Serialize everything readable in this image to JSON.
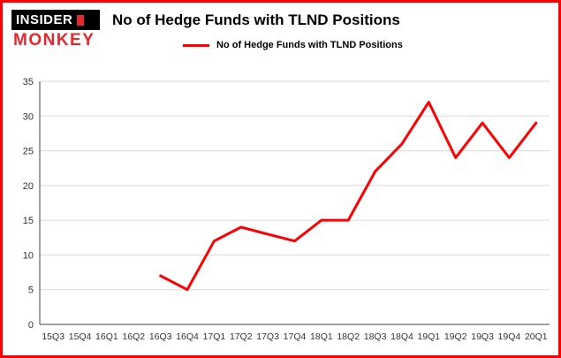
{
  "brand": {
    "line1": "INSIDER",
    "line2": "MONKEY"
  },
  "colors": {
    "accent_red": "#fe0000",
    "border_red": "#fb0104",
    "grid": "#d8d8d8",
    "axis": "#444444",
    "tick_text": "#333333",
    "logo_black": "#000000",
    "logo_red": "#e8262d"
  },
  "chart_data": {
    "type": "line",
    "title": "No of Hedge Funds with TLND Positions",
    "xlabel": "",
    "ylabel": "",
    "categories": [
      "15Q3",
      "15Q4",
      "16Q1",
      "16Q2",
      "16Q3",
      "16Q4",
      "17Q1",
      "17Q2",
      "17Q3",
      "17Q4",
      "18Q1",
      "18Q2",
      "18Q3",
      "18Q4",
      "19Q1",
      "19Q2",
      "19Q3",
      "19Q4",
      "20Q1"
    ],
    "series": [
      {
        "name": "No of Hedge Funds with TLND Positions",
        "color": "#fe0000",
        "values": [
          null,
          null,
          null,
          null,
          7,
          5,
          12,
          14,
          13,
          12,
          15,
          15,
          22,
          26,
          32,
          24,
          29,
          24,
          29
        ]
      }
    ],
    "ylim": [
      0,
      35
    ],
    "ytick_step": 5,
    "yticks": [
      0,
      5,
      10,
      15,
      20,
      25,
      30,
      35
    ],
    "grid": true,
    "legend_position": "top"
  }
}
